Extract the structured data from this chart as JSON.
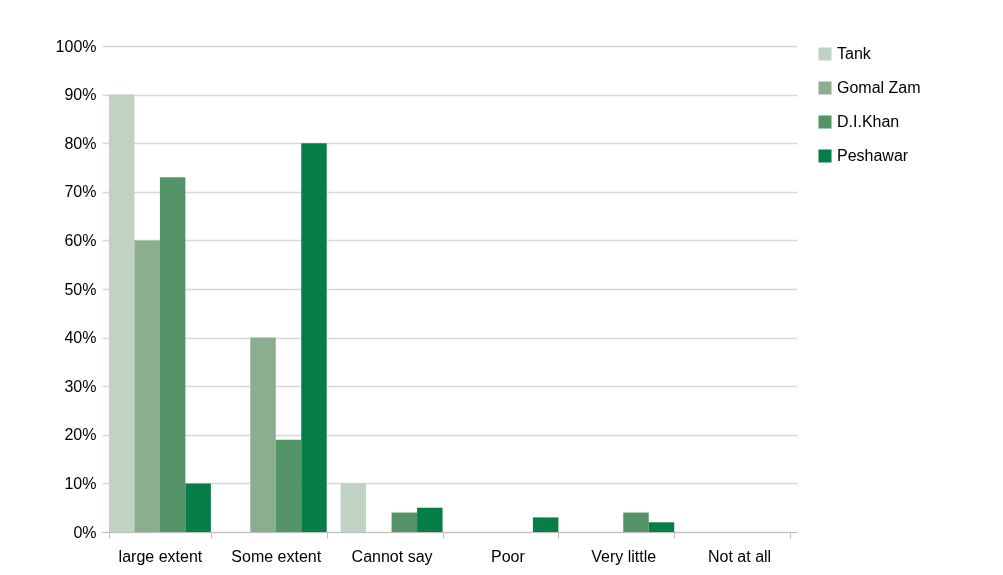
{
  "chart_data": {
    "type": "bar",
    "categories": [
      "large extent",
      "Some extent",
      "Cannot say",
      "Poor",
      "Very little",
      "Not at all"
    ],
    "series": [
      {
        "name": "Tank",
        "color": "#c0d2c2",
        "values": [
          90,
          0,
          10,
          0,
          0,
          0
        ]
      },
      {
        "name": "Gomal Zam",
        "color": "#8aae8e",
        "values": [
          60,
          40,
          0,
          0,
          0,
          0
        ]
      },
      {
        "name": "D.I.Khan",
        "color": "#559469",
        "values": [
          73,
          19,
          4,
          0,
          4,
          0
        ]
      },
      {
        "name": "Peshawar",
        "color": "#077d48",
        "values": [
          10,
          80,
          5,
          3,
          2,
          0
        ]
      }
    ],
    "ylim": [
      0,
      100
    ],
    "yticks": [
      {
        "value": 0,
        "label": "0%"
      },
      {
        "value": 10,
        "label": "10%"
      },
      {
        "value": 20,
        "label": "20%"
      },
      {
        "value": 30,
        "label": "30%"
      },
      {
        "value": 40,
        "label": "40%"
      },
      {
        "value": 50,
        "label": "50%"
      },
      {
        "value": 60,
        "label": "60%"
      },
      {
        "value": 70,
        "label": "70%"
      },
      {
        "value": 80,
        "label": "80%"
      },
      {
        "value": 90,
        "label": "90%"
      },
      {
        "value": 100,
        "label": "100%"
      }
    ],
    "grid": "y",
    "legend": "right"
  }
}
